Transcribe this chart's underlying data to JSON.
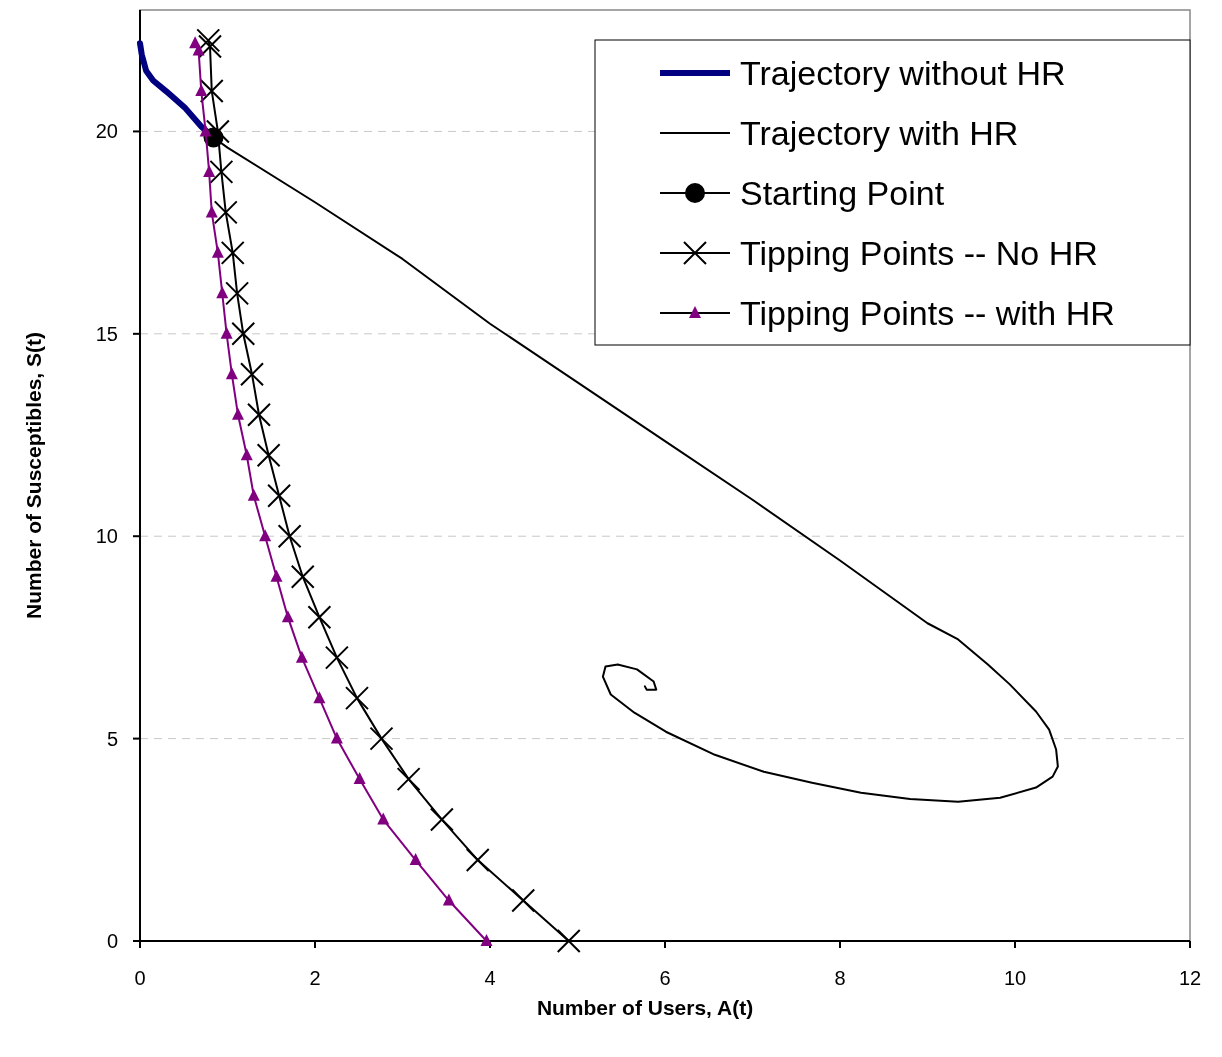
{
  "chart_data": {
    "type": "line",
    "xlabel": "Number of Users, A(t)",
    "ylabel": "Number of Susceptibles, S(t)",
    "xlim": [
      0,
      12
    ],
    "ylim": [
      0,
      23
    ],
    "xticks": [
      0,
      2,
      4,
      6,
      8,
      10,
      12
    ],
    "yticks": [
      0,
      5,
      10,
      15,
      20
    ],
    "grid": "y",
    "legend": "top right",
    "series": [
      {
        "name": "Trajectory without HR",
        "color": "#000080",
        "marker": "none",
        "x": [
          0,
          0.02,
          0.07,
          0.15,
          0.3,
          0.52,
          0.7,
          0.84
        ],
        "values": [
          22.18,
          21.9,
          21.5,
          21.26,
          20.99,
          20.57,
          20.12,
          19.85
        ]
      },
      {
        "name": "Trajectory with HR",
        "color": "#000000",
        "marker": "none",
        "x": [
          0.84,
          1.0,
          2.0,
          3.0,
          4.0,
          5.0,
          6.0,
          7.0,
          8.0,
          9.0,
          9.35,
          9.69,
          9.94,
          10.24,
          10.39,
          10.47,
          10.49,
          10.43,
          10.24,
          9.83,
          9.35,
          8.8,
          8.24,
          7.68,
          7.13,
          6.57,
          6.01,
          5.65,
          5.38,
          5.29,
          5.32,
          5.46,
          5.68,
          5.87,
          5.9,
          5.79,
          5.77
        ],
        "values": [
          19.85,
          19.6,
          18.25,
          16.85,
          15.25,
          13.8,
          12.35,
          10.9,
          9.4,
          7.85,
          7.45,
          6.83,
          6.34,
          5.67,
          5.22,
          4.73,
          4.31,
          4.06,
          3.79,
          3.54,
          3.44,
          3.51,
          3.66,
          3.91,
          4.18,
          4.6,
          5.17,
          5.64,
          6.09,
          6.53,
          6.78,
          6.83,
          6.71,
          6.41,
          6.21,
          6.21,
          6.29
        ]
      },
      {
        "name": "Starting Point",
        "color": "#000000",
        "type": "scatter",
        "marker": "circle",
        "x": [
          0.84
        ],
        "values": [
          19.85
        ]
      },
      {
        "name": "Tipping Points -- No HR",
        "color": "#000000",
        "marker": "cross",
        "x": [
          4.9,
          4.38,
          3.86,
          3.45,
          3.07,
          2.76,
          2.48,
          2.25,
          2.05,
          1.86,
          1.71,
          1.59,
          1.47,
          1.36,
          1.28,
          1.18,
          1.11,
          1.06,
          0.98,
          0.93,
          0.89,
          0.82,
          0.8,
          0.78
        ],
        "values": [
          0,
          1,
          2,
          3,
          4,
          5,
          6,
          7,
          8,
          9,
          10,
          11,
          12,
          13,
          14,
          15,
          16,
          17,
          18,
          19,
          20,
          21,
          22.1,
          22.25
        ]
      },
      {
        "name": "Tipping Points -- with HR",
        "color": "#800080",
        "marker": "triangle",
        "x": [
          3.96,
          3.53,
          3.15,
          2.78,
          2.51,
          2.25,
          2.05,
          1.85,
          1.69,
          1.56,
          1.43,
          1.3,
          1.22,
          1.12,
          1.05,
          0.99,
          0.94,
          0.89,
          0.82,
          0.79,
          0.75,
          0.7,
          0.67,
          0.63
        ],
        "values": [
          0,
          1,
          2,
          3,
          4,
          5,
          6,
          7,
          8,
          9,
          10,
          11,
          12,
          13,
          14,
          15,
          16,
          17,
          18,
          19,
          20,
          21,
          22,
          22.18
        ]
      }
    ]
  }
}
